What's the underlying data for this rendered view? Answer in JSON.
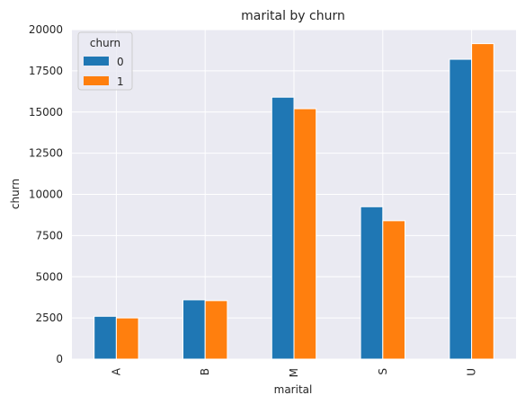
{
  "chart_data": {
    "type": "bar",
    "title": "marital by churn",
    "xlabel": "marital",
    "ylabel": "churn",
    "categories": [
      "A",
      "B",
      "M",
      "S",
      "U"
    ],
    "series": [
      {
        "name": "0",
        "values": [
          2600,
          3600,
          15900,
          9250,
          18200
        ],
        "color": "#1f77b4"
      },
      {
        "name": "1",
        "values": [
          2500,
          3550,
          15200,
          8400,
          19150
        ],
        "color": "#ff7f0e"
      }
    ],
    "ylim": [
      0,
      20000
    ],
    "yticks": [
      0,
      2500,
      5000,
      7500,
      10000,
      12500,
      15000,
      17500,
      20000
    ],
    "grid": true,
    "legend": {
      "title": "churn",
      "placement": "top-left"
    },
    "background_color": "#eaeaf2"
  }
}
